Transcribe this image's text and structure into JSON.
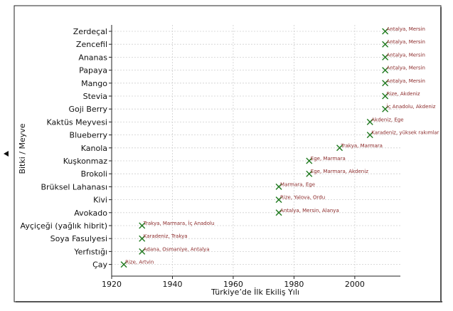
{
  "chart_data": {
    "type": "scatter",
    "title": "",
    "xlabel": "Türkiye’de İlk Ekiliş Yılı",
    "ylabel": "Bitki / Meyve",
    "xlim": [
      1920,
      2015
    ],
    "xticks": [
      1920,
      1940,
      1960,
      1980,
      2000
    ],
    "grid": true,
    "marker": "x",
    "colors": {
      "marker": "#1f7a1f",
      "annotation": "#8b2a2a"
    },
    "points": [
      {
        "label": "Zerdeçal",
        "year": 2010,
        "annotation": "Antalya, Mersin"
      },
      {
        "label": "Zencefil",
        "year": 2010,
        "annotation": "Antalya, Mersin"
      },
      {
        "label": "Ananas",
        "year": 2010,
        "annotation": "Antalya, Mersin"
      },
      {
        "label": "Papaya",
        "year": 2010,
        "annotation": "Antalya, Mersin"
      },
      {
        "label": "Mango",
        "year": 2010,
        "annotation": "Antalya, Mersin"
      },
      {
        "label": "Stevia",
        "year": 2010,
        "annotation": "Rize, Akdeniz"
      },
      {
        "label": "Goji Berry",
        "year": 2010,
        "annotation": "İç Anadolu, Akdeniz"
      },
      {
        "label": "Kaktüs Meyvesi",
        "year": 2005,
        "annotation": "Akdeniz, Ege"
      },
      {
        "label": "Blueberry",
        "year": 2005,
        "annotation": "Karadeniz, yüksek rakımlar"
      },
      {
        "label": "Kanola",
        "year": 1995,
        "annotation": "Trakya, Marmara"
      },
      {
        "label": "Kuşkonmaz",
        "year": 1985,
        "annotation": "Ege, Marmara"
      },
      {
        "label": "Brokoli",
        "year": 1985,
        "annotation": "Ege, Marmara, Akdeniz"
      },
      {
        "label": "Brüksel Lahanası",
        "year": 1975,
        "annotation": "Marmara, Ege"
      },
      {
        "label": "Kivi",
        "year": 1975,
        "annotation": "Rize, Yalova, Ordu"
      },
      {
        "label": "Avokado",
        "year": 1975,
        "annotation": "Antalya, Mersin, Alanya"
      },
      {
        "label": "Ayçiçeği (yağlık hibrit)",
        "year": 1930,
        "annotation": "Trakya, Marmara, İç Anadolu"
      },
      {
        "label": "Soya Fasulyesi",
        "year": 1930,
        "annotation": "Karadeniz, Trakya"
      },
      {
        "label": "Yerfıstığı",
        "year": 1930,
        "annotation": "Adana, Osmaniye, Antalya"
      },
      {
        "label": "Çay",
        "year": 1924,
        "annotation": "Rize, Artvin"
      }
    ]
  }
}
